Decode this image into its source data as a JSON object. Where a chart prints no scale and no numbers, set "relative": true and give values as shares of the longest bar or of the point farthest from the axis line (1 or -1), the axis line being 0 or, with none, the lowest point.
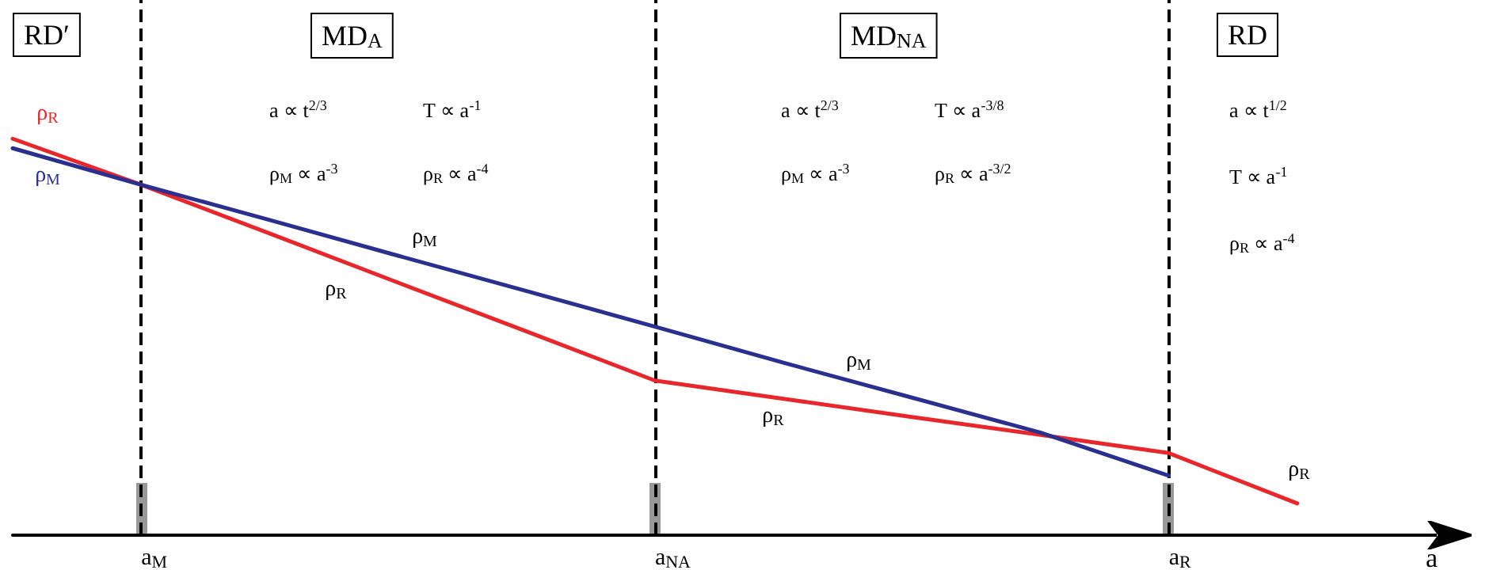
{
  "chart_data": {
    "type": "line",
    "relative": true,
    "xlabel": "a",
    "categories": [
      null,
      "a$_{M}$",
      null,
      null,
      null,
      "a$_{NA}$",
      null,
      null,
      null,
      "a$_{R}$",
      null,
      null
    ],
    "series": [
      {
        "name": "ρ$_{R}$",
        "color": "#e8262b",
        "values": [
          1.0,
          0.884,
          0.761,
          0.637,
          0.514,
          0.39,
          0.344,
          0.298,
          0.253,
          0.207,
          0.08,
          null
        ]
      },
      {
        "name": "ρ$_{M}$",
        "color": "#2b2f8f",
        "values": [
          0.976,
          0.884,
          0.795,
          0.705,
          0.616,
          0.526,
          0.435,
          0.347,
          0.259,
          0.15,
          null,
          null
        ]
      }
    ],
    "ref_lines": [
      {
        "axis": "x",
        "value": "a$_{M}$",
        "color": "#000000",
        "line_style": "dashed"
      },
      {
        "axis": "x",
        "value": "a$_{NA}$",
        "color": "#000000",
        "line_style": "dashed"
      },
      {
        "axis": "x",
        "value": "a$_{R}$",
        "color": "#000000",
        "line_style": "dashed"
      }
    ],
    "annotations": [
      "RD′",
      "MD$_{A}$",
      "MD$_{NA}$",
      "RD",
      "a ∝ t$^{2/3}$",
      "T ∝ a$^{-1}$",
      "ρ$_{M}$ ∝ a$^{-3}$",
      "ρ$_{R}$ ∝ a$^{-4}$",
      "a ∝ t$^{2/3}$",
      "T ∝ a$^{-3/8}$",
      "ρ$_{M}$ ∝ a$^{-3}$",
      "ρ$_{R}$ ∝ a$^{-3/2}$",
      "a ∝ t$^{1/2}$",
      "T ∝ a$^{-1}$",
      "ρ$_{R}$ ∝ a$^{-4}$",
      "ρ$_{M}$",
      "ρ$_{R}$",
      "ρ$_{M}$",
      "ρ$_{R}$",
      "ρ$_{R}$"
    ]
  }
}
